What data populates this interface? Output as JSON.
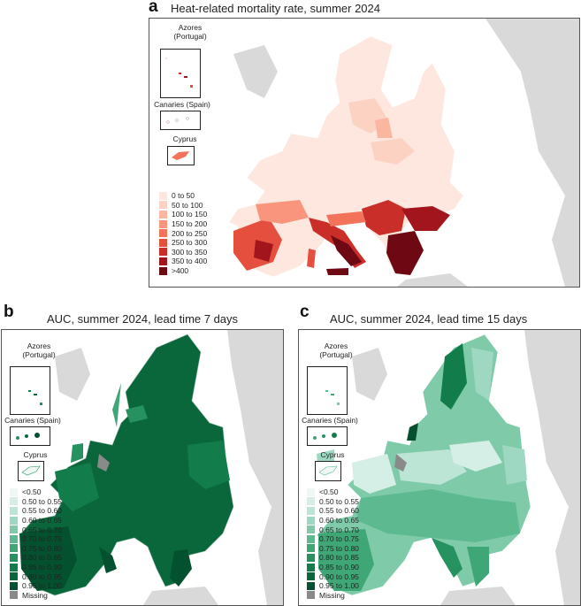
{
  "panels": {
    "a": {
      "letter": "a",
      "title": "Heat-related mortality rate, summer 2024",
      "insets": {
        "azores": "Azores\n(Portugal)",
        "canaries": "Canaries (Spain)",
        "cyprus": "Cyprus"
      },
      "legend": [
        {
          "label": "0 to 50",
          "color": "#fde7de"
        },
        {
          "label": "50 to 100",
          "color": "#fcd2c3"
        },
        {
          "label": "100 to 150",
          "color": "#fbb6a0"
        },
        {
          "label": "150 to 200",
          "color": "#f8957c"
        },
        {
          "label": "200 to 250",
          "color": "#f2725a"
        },
        {
          "label": "250 to 300",
          "color": "#e4503d"
        },
        {
          "label": "300 to 350",
          "color": "#c92f28"
        },
        {
          "label": "350 to 400",
          "color": "#a3151c"
        },
        {
          "label": ">400",
          "color": "#6e0812"
        }
      ]
    },
    "b": {
      "letter": "b",
      "title": "AUC, summer 2024, lead time 7 days",
      "insets": {
        "azores": "Azores\n(Portugal)",
        "canaries": "Canaries (Spain)",
        "cyprus": "Cyprus"
      }
    },
    "c": {
      "letter": "c",
      "title": "AUC, summer 2024, lead time 15 days",
      "insets": {
        "azores": "Azores\n(Portugal)",
        "canaries": "Canaries (Spain)",
        "cyprus": "Cyprus"
      }
    }
  },
  "auc_legend": [
    {
      "label": "<0.50",
      "color": "#eef7f4"
    },
    {
      "label": "0.50 to 0.55",
      "color": "#d6efe6"
    },
    {
      "label": "0.55 to 0.60",
      "color": "#bde5d5"
    },
    {
      "label": "0.60 to 0.65",
      "color": "#9fd8c2"
    },
    {
      "label": "0.65 to 0.70",
      "color": "#7ecaa9"
    },
    {
      "label": "0.70 to 0.75",
      "color": "#5db98f"
    },
    {
      "label": "0.75 to 0.80",
      "color": "#3fa776"
    },
    {
      "label": "0.80 to 0.85",
      "color": "#25925f"
    },
    {
      "label": "0.85 to 0.90",
      "color": "#137c4b"
    },
    {
      "label": "0.90 to 0.95",
      "color": "#0a673c"
    },
    {
      "label": "0.95 to 1.00",
      "color": "#04512f"
    },
    {
      "label": "Missing",
      "color": "#8a8a8a"
    }
  ],
  "colors": {
    "sea": "#ffffff",
    "nonEU_land": "#d9d9d9",
    "border": "#ffffff",
    "frame": "#555555"
  }
}
